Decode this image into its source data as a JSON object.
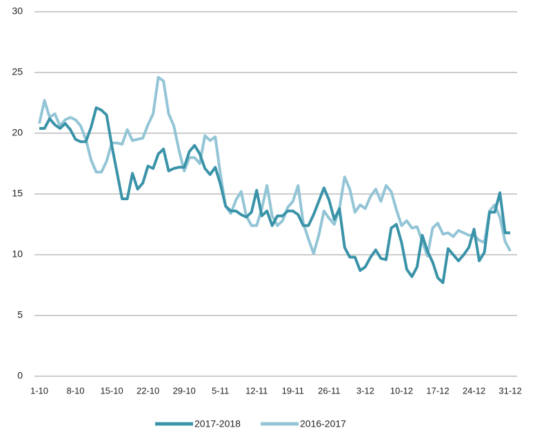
{
  "chart_data": {
    "type": "line",
    "categories": [
      "1-10",
      null,
      null,
      null,
      null,
      null,
      null,
      "8-10",
      null,
      null,
      null,
      null,
      null,
      null,
      "15-10",
      null,
      null,
      null,
      null,
      null,
      null,
      "22-10",
      null,
      null,
      null,
      null,
      null,
      null,
      "29-10",
      null,
      null,
      null,
      null,
      null,
      null,
      "5-11",
      null,
      null,
      null,
      null,
      null,
      null,
      "12-11",
      null,
      null,
      null,
      null,
      null,
      null,
      "19-11",
      null,
      null,
      null,
      null,
      null,
      null,
      "26-11",
      null,
      null,
      null,
      null,
      null,
      null,
      "3-12",
      null,
      null,
      null,
      null,
      null,
      null,
      "10-12",
      null,
      null,
      null,
      null,
      null,
      null,
      "17-12",
      null,
      null,
      null,
      null,
      null,
      null,
      "24-12",
      null,
      null,
      null,
      null,
      null,
      null,
      "31-12"
    ],
    "series": [
      {
        "name": "2017-2018",
        "color": "#3a93a8",
        "values": [
          20.4,
          20.4,
          21.2,
          20.7,
          20.4,
          20.8,
          20.3,
          19.5,
          19.3,
          19.3,
          20.5,
          22.1,
          21.9,
          21.5,
          19,
          16.8,
          14.6,
          14.6,
          16.7,
          15.4,
          15.9,
          17.3,
          17.1,
          18.3,
          18.7,
          16.9,
          17.1,
          17.2,
          17.2,
          18.5,
          19,
          18.3,
          17.1,
          16.6,
          17.2,
          15.8,
          14,
          13.6,
          13.6,
          13.3,
          13.1,
          13.5,
          15.3,
          13.2,
          13.6,
          12.4,
          13.2,
          13.2,
          13.6,
          13.6,
          13.3,
          12.4,
          12.4,
          13.3,
          14.4,
          15.5,
          14.5,
          12.9,
          13.8,
          10.6,
          9.8,
          9.8,
          8.7,
          9,
          9.8,
          10.4,
          9.7,
          9.6,
          12.2,
          12.5,
          11,
          8.8,
          8.2,
          9,
          11.6,
          10.3,
          9.4,
          8.1,
          7.7,
          10.5,
          10,
          9.5,
          10,
          10.6,
          12.1,
          9.5,
          10.2,
          13.5,
          13.5,
          15.1,
          11.8,
          11.8
        ]
      },
      {
        "name": "2016-2017",
        "color": "#93c5d6",
        "values": [
          20.8,
          22.7,
          21.3,
          21.6,
          20.6,
          21.1,
          21.3,
          21.1,
          20.6,
          19.5,
          17.8,
          16.8,
          16.8,
          17.7,
          19.2,
          19.2,
          19.1,
          20.3,
          19.4,
          19.5,
          19.6,
          20.7,
          21.6,
          24.6,
          24.3,
          21.6,
          20.6,
          18.6,
          16.9,
          18,
          18,
          17.5,
          19.8,
          19.4,
          19.7,
          16.6,
          14,
          13.4,
          14.5,
          15.2,
          13.2,
          12.4,
          12.4,
          13.8,
          15.7,
          13.2,
          12.4,
          12.8,
          13.9,
          14.4,
          15.7,
          12.6,
          11.3,
          10.1,
          11.6,
          13.6,
          13,
          12.5,
          13.8,
          16.4,
          15.4,
          13.5,
          14.1,
          13.8,
          14.8,
          15.4,
          14.4,
          15.7,
          15.2,
          13.7,
          12.4,
          12.8,
          12.2,
          12.3,
          11.1,
          9.9,
          12.2,
          12.6,
          11.7,
          11.8,
          11.5,
          12,
          11.8,
          11.6,
          11.6,
          11.2,
          11,
          13.6,
          14.1,
          13.1,
          11.1,
          10.3
        ]
      }
    ],
    "ylim": [
      0,
      30
    ],
    "yticks": [
      0,
      5,
      10,
      15,
      20,
      25,
      30
    ],
    "grid": true,
    "legend": "bottom"
  }
}
